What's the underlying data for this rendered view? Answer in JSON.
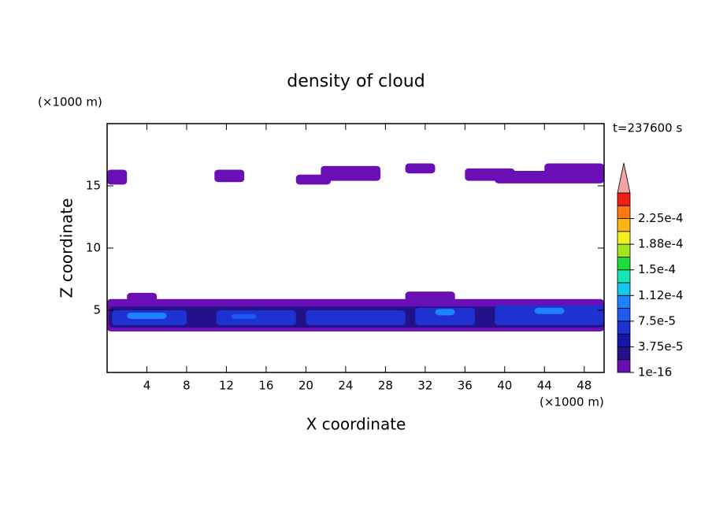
{
  "chart_data": {
    "type": "contour",
    "title": "density of cloud",
    "time_label": "t=237600 s",
    "xlabel": "X coordinate",
    "ylabel": "Z coordinate",
    "xunit": "(×1000 m)",
    "yunit": "(×1000 m)",
    "xlim": [
      0,
      50
    ],
    "ylim": [
      0,
      20
    ],
    "xticks": [
      4,
      8,
      12,
      16,
      20,
      24,
      28,
      32,
      36,
      40,
      44,
      48
    ],
    "yticks": [
      5,
      10,
      15
    ],
    "colorbar": {
      "levels": [
        1e-16,
        1.875e-05,
        3.75e-05,
        5.625e-05,
        7.5e-05,
        9.375e-05,
        0.0001125,
        0.00013125,
        0.00015,
        0.00016875,
        0.0001875,
        0.00020625,
        0.000225,
        0.00024375
      ],
      "colors": [
        "#6a0fb5",
        "#23118a",
        "#1414a8",
        "#1e32d2",
        "#1e5af0",
        "#1e82ff",
        "#14c8f0",
        "#14e6b4",
        "#1edc3c",
        "#a0e61e",
        "#f0f01e",
        "#ffb414",
        "#ff7814",
        "#f01e14"
      ],
      "extend_color": "#f4a4a4",
      "ticks": [
        {
          "value": 1e-16,
          "label": "1e-16"
        },
        {
          "value": 3.75e-05,
          "label": "3.75e-5"
        },
        {
          "value": 7.5e-05,
          "label": "7.5e-5"
        },
        {
          "value": 0.0001125,
          "label": "1.12e-4"
        },
        {
          "value": 0.00015,
          "label": "1.5e-4"
        },
        {
          "value": 0.0001875,
          "label": "1.88e-4"
        },
        {
          "value": 0.000225,
          "label": "2.25e-4"
        }
      ]
    },
    "patches": [
      {
        "x": [
          0,
          2
        ],
        "z": [
          15.1,
          16.3
        ],
        "value": 1e-05
      },
      {
        "x": [
          10.8,
          13.8
        ],
        "z": [
          15.3,
          16.3
        ],
        "value": 1e-05
      },
      {
        "x": [
          19,
          22.5
        ],
        "z": [
          15.1,
          15.9
        ],
        "value": 1e-05
      },
      {
        "x": [
          21.5,
          27.5
        ],
        "z": [
          15.4,
          16.6
        ],
        "value": 1e-05
      },
      {
        "x": [
          30,
          33
        ],
        "z": [
          16,
          16.8
        ],
        "value": 1e-05
      },
      {
        "x": [
          36,
          41
        ],
        "z": [
          15.4,
          16.4
        ],
        "value": 1e-05
      },
      {
        "x": [
          39,
          50
        ],
        "z": [
          15.2,
          16.2
        ],
        "value": 1e-05
      },
      {
        "x": [
          44,
          50
        ],
        "z": [
          15.8,
          16.8
        ],
        "value": 1e-05
      },
      {
        "x": [
          0,
          50
        ],
        "z": [
          3.3,
          5.9
        ],
        "value": 1e-05
      },
      {
        "x": [
          2,
          5
        ],
        "z": [
          5.5,
          6.4
        ],
        "value": 1e-05
      },
      {
        "x": [
          30,
          35
        ],
        "z": [
          5.5,
          6.5
        ],
        "value": 1e-05
      },
      {
        "x": [
          0.2,
          50
        ],
        "z": [
          3.6,
          5.3
        ],
        "value": 3e-05
      },
      {
        "x": [
          0.5,
          8
        ],
        "z": [
          3.8,
          5.0
        ],
        "value": 6e-05
      },
      {
        "x": [
          11,
          19
        ],
        "z": [
          3.8,
          5.0
        ],
        "value": 6e-05
      },
      {
        "x": [
          20,
          30
        ],
        "z": [
          3.8,
          5.0
        ],
        "value": 6e-05
      },
      {
        "x": [
          31,
          37
        ],
        "z": [
          3.8,
          5.2
        ],
        "value": 6e-05
      },
      {
        "x": [
          39,
          50
        ],
        "z": [
          3.8,
          5.4
        ],
        "value": 6e-05
      },
      {
        "x": [
          2,
          6
        ],
        "z": [
          4.3,
          4.8
        ],
        "value": 9.5e-05
      },
      {
        "x": [
          12.5,
          15
        ],
        "z": [
          4.3,
          4.7
        ],
        "value": 8e-05
      },
      {
        "x": [
          33,
          35
        ],
        "z": [
          4.6,
          5.1
        ],
        "value": 9.5e-05
      },
      {
        "x": [
          43,
          46
        ],
        "z": [
          4.7,
          5.2
        ],
        "value": 9.5e-05
      }
    ]
  }
}
